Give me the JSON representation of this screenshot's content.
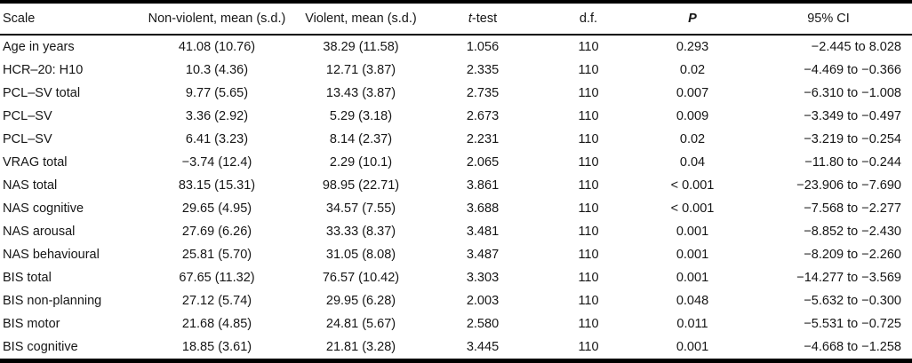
{
  "table": {
    "headers": {
      "scale": "Scale",
      "nonviolent": "Non-violent, mean (s.d.)",
      "violent": "Violent, mean (s.d.)",
      "t_prefix": "t",
      "t_suffix": "-test",
      "df": "d.f.",
      "p": "P",
      "ci": "95% CI"
    },
    "rows": [
      {
        "scale": "Age in years",
        "nonviolent": "41.08 (10.76)",
        "violent": "38.29 (11.58)",
        "t": "1.056",
        "df": "110",
        "p": "0.293",
        "ci": "−2.445 to 8.028"
      },
      {
        "scale": "HCR–20: H10",
        "nonviolent": "10.3 (4.36)",
        "violent": "12.71 (3.87)",
        "t": "2.335",
        "df": "110",
        "p": "0.02",
        "ci": "−4.469 to −0.366"
      },
      {
        "scale": "PCL–SV total",
        "nonviolent": "9.77 (5.65)",
        "violent": "13.43 (3.87)",
        "t": "2.735",
        "df": "110",
        "p": "0.007",
        "ci": "−6.310 to −1.008"
      },
      {
        "scale": "PCL–SV",
        "nonviolent": "3.36 (2.92)",
        "violent": "5.29 (3.18)",
        "t": "2.673",
        "df": "110",
        "p": "0.009",
        "ci": "−3.349 to −0.497"
      },
      {
        "scale": "PCL–SV",
        "nonviolent": "6.41 (3.23)",
        "violent": "8.14 (2.37)",
        "t": "2.231",
        "df": "110",
        "p": "0.02",
        "ci": "−3.219 to −0.254"
      },
      {
        "scale": "VRAG total",
        "nonviolent": "−3.74 (12.4)",
        "violent": "2.29 (10.1)",
        "t": "2.065",
        "df": "110",
        "p": "0.04",
        "ci": "−11.80 to −0.244"
      },
      {
        "scale": "NAS total",
        "nonviolent": "83.15 (15.31)",
        "violent": "98.95 (22.71)",
        "t": "3.861",
        "df": "110",
        "p": "< 0.001",
        "ci": "−23.906 to −7.690"
      },
      {
        "scale": "NAS cognitive",
        "nonviolent": "29.65 (4.95)",
        "violent": "34.57 (7.55)",
        "t": "3.688",
        "df": "110",
        "p": "< 0.001",
        "ci": "−7.568 to −2.277"
      },
      {
        "scale": "NAS arousal",
        "nonviolent": "27.69 (6.26)",
        "violent": "33.33 (8.37)",
        "t": "3.481",
        "df": "110",
        "p": "0.001",
        "ci": "−8.852 to −2.430"
      },
      {
        "scale": "NAS behavioural",
        "nonviolent": "25.81 (5.70)",
        "violent": "31.05 (8.08)",
        "t": "3.487",
        "df": "110",
        "p": "0.001",
        "ci": "−8.209 to −2.260"
      },
      {
        "scale": "BIS total",
        "nonviolent": "67.65 (11.32)",
        "violent": "76.57 (10.42)",
        "t": "3.303",
        "df": "110",
        "p": "0.001",
        "ci": "−14.277 to −3.569"
      },
      {
        "scale": "BIS non-planning",
        "nonviolent": "27.12 (5.74)",
        "violent": "29.95 (6.28)",
        "t": "2.003",
        "df": "110",
        "p": "0.048",
        "ci": "−5.632 to −0.300"
      },
      {
        "scale": "BIS motor",
        "nonviolent": "21.68 (4.85)",
        "violent": "24.81 (5.67)",
        "t": "2.580",
        "df": "110",
        "p": "0.011",
        "ci": "−5.531 to −0.725"
      },
      {
        "scale": "BIS cognitive",
        "nonviolent": "18.85 (3.61)",
        "violent": "21.81 (3.28)",
        "t": "3.445",
        "df": "110",
        "p": "0.001",
        "ci": "−4.668 to −1.258"
      }
    ]
  }
}
